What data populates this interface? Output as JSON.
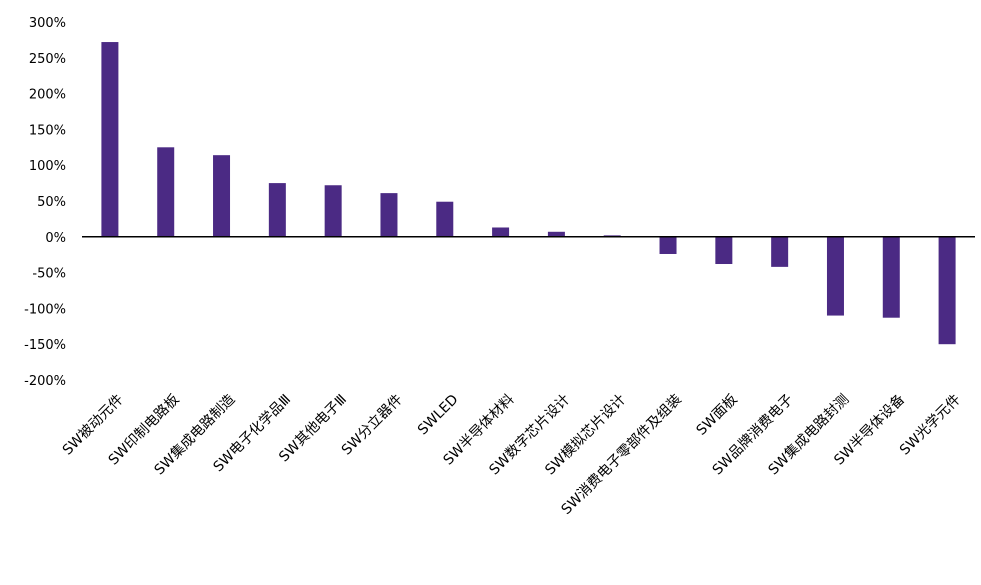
{
  "chart_data": {
    "type": "bar",
    "title": "",
    "xlabel": "",
    "ylabel": "",
    "ylim": [
      -200,
      300
    ],
    "grid": false,
    "legend": "none",
    "yticks": [
      "300%",
      "250%",
      "200%",
      "150%",
      "100%",
      "50%",
      "0%",
      "-50%",
      "-100%",
      "-150%",
      "-200%"
    ],
    "categories": [
      "SW被动元件",
      "SW印制电路板",
      "SW集成电路制造",
      "SW电子化学品Ⅲ",
      "SW其他电子Ⅲ",
      "SW分立器件",
      "SWLED",
      "SW半导体材料",
      "SW数字芯片设计",
      "SW模拟芯片设计",
      "SW消费电子零部件及组装",
      "SW面板",
      "SW品牌消费电子",
      "SW集成电路封测",
      "SW半导体设备",
      "SW光学元件"
    ],
    "values": [
      272,
      125,
      114,
      75,
      72,
      61,
      49,
      13,
      7,
      2,
      -24,
      -38,
      -42,
      -110,
      -113,
      -150
    ],
    "colors": {
      "bar": "#4B2A84",
      "axis": "#000000"
    }
  }
}
